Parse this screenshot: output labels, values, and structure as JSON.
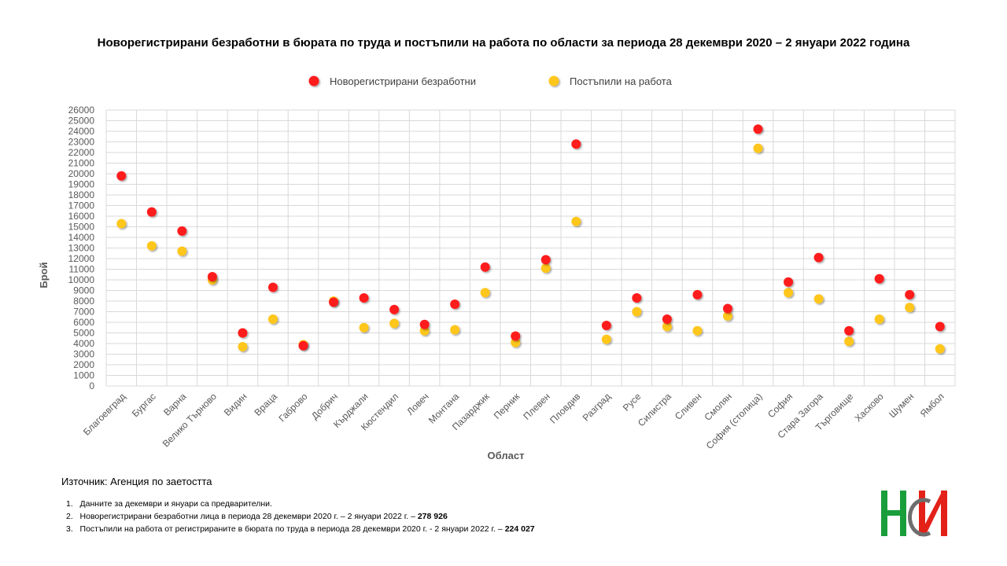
{
  "chart_data": {
    "type": "scatter",
    "title": "Новорегистрирани безработни в бюрата по труда и постъпили на работа по области за периода 28 декември 2020 – 2 януари 2022 година",
    "xlabel": "Област",
    "ylabel": "Брой",
    "ylim": [
      0,
      26000
    ],
    "ytick_step": 1000,
    "grid": true,
    "legend_position": "top-center",
    "categories": [
      "Благоевград",
      "Бургас",
      "Варна",
      "Велико Търново",
      "Видин",
      "Враца",
      "Габрово",
      "Добрич",
      "Кърджали",
      "Кюстендил",
      "Ловеч",
      "Монтана",
      "Пазарджик",
      "Перник",
      "Плевен",
      "Пловдив",
      "Разград",
      "Русе",
      "Силистра",
      "Сливен",
      "Смолян",
      "София (столица)",
      "София",
      "Стара Загора",
      "Търговище",
      "Хасково",
      "Шумен",
      "Ямбол"
    ],
    "series": [
      {
        "name": "Новорегистрирани безработни",
        "color": "#ff1f1f",
        "values": [
          19800,
          16400,
          14600,
          10300,
          5000,
          9300,
          3800,
          7900,
          8300,
          7200,
          5800,
          7700,
          11200,
          4700,
          11900,
          22800,
          5700,
          8300,
          6300,
          8600,
          7300,
          24200,
          9800,
          12100,
          5200,
          10100,
          8600,
          5600
        ]
      },
      {
        "name": "Постъпили на работа",
        "color": "#ffc61a",
        "values": [
          15300,
          13200,
          12700,
          10000,
          3700,
          6300,
          3900,
          8000,
          5500,
          5900,
          5200,
          5300,
          8800,
          4100,
          11100,
          15500,
          4400,
          7000,
          5600,
          5200,
          6600,
          22400,
          8800,
          8200,
          4200,
          6300,
          7400,
          3500
        ]
      }
    ]
  },
  "source": "Източник: Агенция по заетостта",
  "notes": [
    {
      "num": "1.",
      "text": "Данните за декември  и януари са предварителни.",
      "value": ""
    },
    {
      "num": "2.",
      "text": "Новорегистрирани безработни лица в периода 28 декември  2020 г. – 2 януари 2022 г. – ",
      "value": "278 926"
    },
    {
      "num": "3.",
      "text": "Постъпили на работа от регистрираните в бюрата по труда в периода 28 декември  2020 г. - 2 януари 2022 г. – ",
      "value": "224 027"
    }
  ],
  "logo": {
    "colors": {
      "green": "#1a9e3c",
      "red": "#e32119",
      "gray": "#6e6e6e"
    }
  }
}
